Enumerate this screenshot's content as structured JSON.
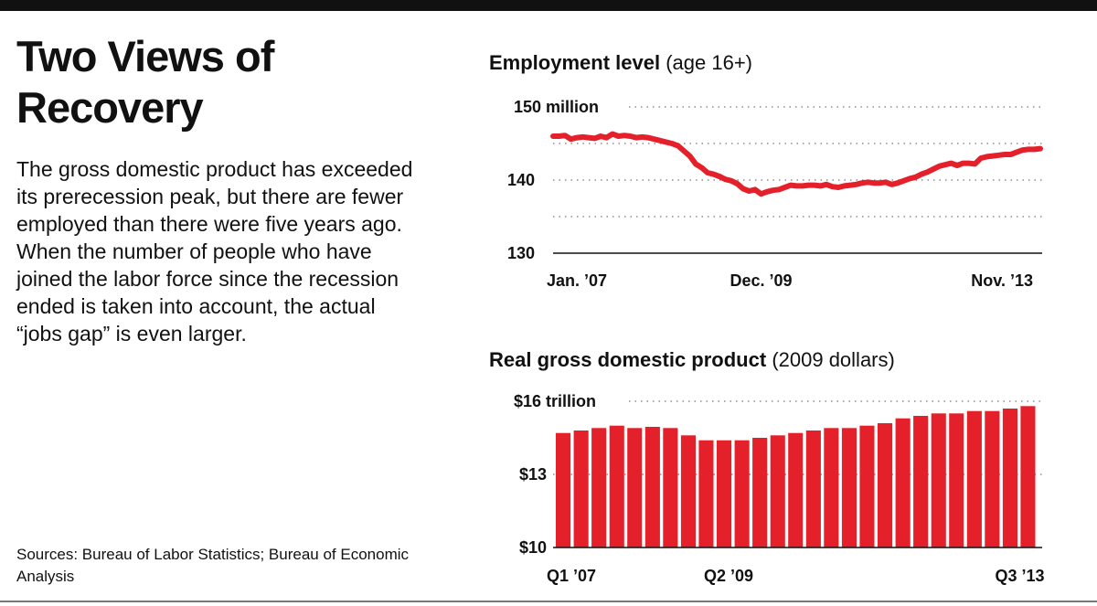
{
  "title": "Two Views of Recovery",
  "description": "The gross domestic product has exceeded its prerecession peak, but there are fewer employed than there were five years ago. When the number of people who have joined the labor force since the recession ended is taken into account, the actual “jobs gap” is even larger.",
  "sources": "Sources: Bureau of Labor Statistics; Bureau of Economic Analysis",
  "colors": {
    "accent": "#e4202a",
    "text": "#111111"
  },
  "chart_data": [
    {
      "type": "line",
      "title": "Employment level",
      "subtitle": "(age 16+)",
      "ylim": [
        130,
        150
      ],
      "y_ticks": [
        130,
        140,
        150
      ],
      "y_tick_labels": [
        "130",
        "140",
        "150 million"
      ],
      "grid": true,
      "x_tick_labels": [
        "Jan. ’07",
        "Dec. ’09",
        "Nov. ’13"
      ],
      "x_range": [
        0,
        82
      ],
      "x_tick_positions": [
        0,
        35,
        82
      ],
      "series": [
        {
          "values": [
            146.0,
            146.0,
            146.1,
            145.6,
            145.8,
            145.9,
            145.8,
            145.7,
            146.0,
            145.8,
            146.3,
            146.0,
            146.1,
            146.0,
            145.8,
            145.9,
            145.8,
            145.6,
            145.4,
            145.2,
            145.0,
            144.7,
            144.0,
            143.3,
            142.2,
            141.7,
            141.0,
            140.8,
            140.5,
            140.1,
            139.9,
            139.5,
            138.8,
            138.5,
            138.7,
            138.1,
            138.4,
            138.6,
            138.7,
            139.0,
            139.3,
            139.2,
            139.2,
            139.3,
            139.3,
            139.2,
            139.4,
            139.1,
            139.0,
            139.2,
            139.3,
            139.4,
            139.6,
            139.7,
            139.6,
            139.6,
            139.7,
            139.4,
            139.6,
            139.9,
            140.2,
            140.4,
            140.8,
            141.1,
            141.5,
            141.9,
            142.1,
            142.3,
            142.0,
            142.3,
            142.3,
            142.2,
            143.0,
            143.2,
            143.3,
            143.4,
            143.5,
            143.5,
            143.8,
            144.1,
            144.2,
            144.2,
            144.3
          ]
        }
      ]
    },
    {
      "type": "bar",
      "title": "Real gross domestic product",
      "subtitle": "(2009 dollars)",
      "ylim": [
        10,
        16
      ],
      "y_ticks": [
        10,
        13,
        16
      ],
      "y_tick_labels": [
        "$10",
        "$13",
        "$16 trillion"
      ],
      "grid": true,
      "x_tick_labels": [
        "Q1 ’07",
        "Q2 ’09",
        "Q3 ’13"
      ],
      "x_tick_positions": [
        0,
        9,
        26
      ],
      "series": [
        {
          "values": [
            14.7,
            14.8,
            14.9,
            15.0,
            14.9,
            14.95,
            14.9,
            14.6,
            14.4,
            14.4,
            14.4,
            14.5,
            14.6,
            14.7,
            14.8,
            14.9,
            14.9,
            15.0,
            15.1,
            15.3,
            15.4,
            15.5,
            15.5,
            15.6,
            15.6,
            15.7,
            15.8
          ]
        }
      ]
    }
  ]
}
